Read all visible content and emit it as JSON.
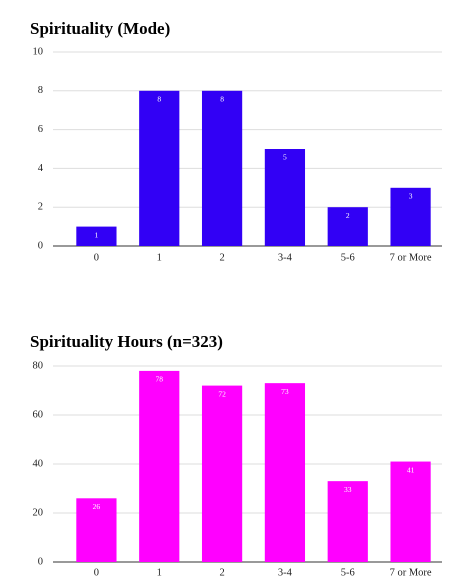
{
  "chart_data": [
    {
      "type": "bar",
      "title": "Spirituality (Mode)",
      "categories": [
        "0",
        "1",
        "2",
        "3-4",
        "5-6",
        "7 or More"
      ],
      "values": [
        1,
        8,
        8,
        5,
        2,
        3
      ],
      "color": "#3200f5",
      "ylim": [
        0,
        10
      ],
      "yticks": [
        0,
        2,
        4,
        6,
        8,
        10
      ],
      "grid": true
    },
    {
      "type": "bar",
      "title": "Spirituality Hours (n=323)",
      "categories": [
        "0",
        "1",
        "2",
        "3-4",
        "5-6",
        "7 or More"
      ],
      "values": [
        26,
        78,
        72,
        73,
        33,
        41
      ],
      "color": "#ff00ff",
      "ylim": [
        0,
        80
      ],
      "yticks": [
        0,
        20,
        40,
        60,
        80
      ],
      "grid": true
    }
  ]
}
